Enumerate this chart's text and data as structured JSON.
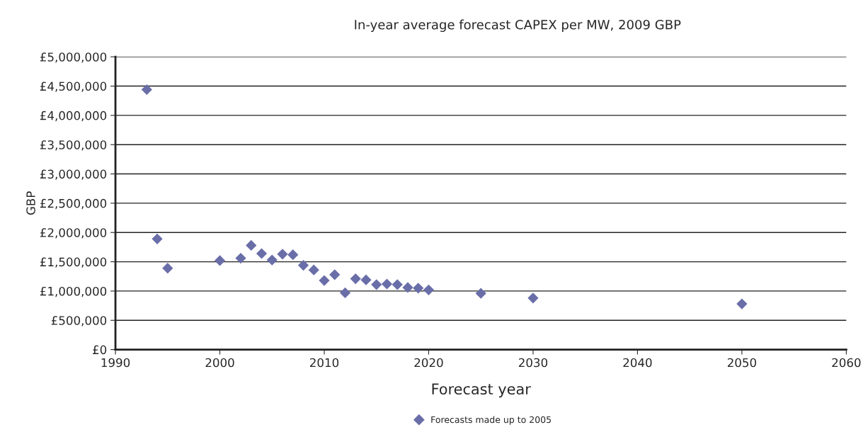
{
  "chart_data": {
    "type": "scatter",
    "title": "In-year average forecast CAPEX per MW, 2009 GBP",
    "xlabel": "Forecast year",
    "ylabel": "GBP",
    "xlim": [
      1990,
      2060
    ],
    "xticks": [
      1990,
      2000,
      2010,
      2020,
      2030,
      2040,
      2050,
      2060
    ],
    "ylim": [
      0,
      5000000
    ],
    "yticks": [
      {
        "value": 0,
        "label": "£0"
      },
      {
        "value": 500000,
        "label": "£500,000"
      },
      {
        "value": 1000000,
        "label": "£1,000,000"
      },
      {
        "value": 1500000,
        "label": "£1,500,000"
      },
      {
        "value": 2000000,
        "label": "£2,000,000"
      },
      {
        "value": 2500000,
        "label": "£2,500,000"
      },
      {
        "value": 3000000,
        "label": "£3,000,000"
      },
      {
        "value": 3500000,
        "label": "£3,500,000"
      },
      {
        "value": 4000000,
        "label": "£4,000,000"
      },
      {
        "value": 4500000,
        "label": "£4,500,000"
      },
      {
        "value": 5000000,
        "label": "£5,000,000"
      }
    ],
    "grid": "y",
    "legend": "bottom",
    "marker": "diamond",
    "series": [
      {
        "name": "Forecasts made up to 2005",
        "color": "#6a6ea8",
        "x": [
          1993,
          1994,
          1995,
          2000,
          2002,
          2003,
          2004,
          2005,
          2006,
          2007,
          2008,
          2009,
          2010,
          2011,
          2012,
          2013,
          2014,
          2015,
          2016,
          2017,
          2018,
          2019,
          2020,
          2025,
          2030,
          2050
        ],
        "values": [
          4440000,
          1890000,
          1390000,
          1520000,
          1560000,
          1780000,
          1640000,
          1530000,
          1630000,
          1620000,
          1440000,
          1360000,
          1180000,
          1280000,
          970000,
          1210000,
          1190000,
          1110000,
          1120000,
          1110000,
          1060000,
          1050000,
          1020000,
          960000,
          880000,
          780000
        ]
      }
    ]
  }
}
